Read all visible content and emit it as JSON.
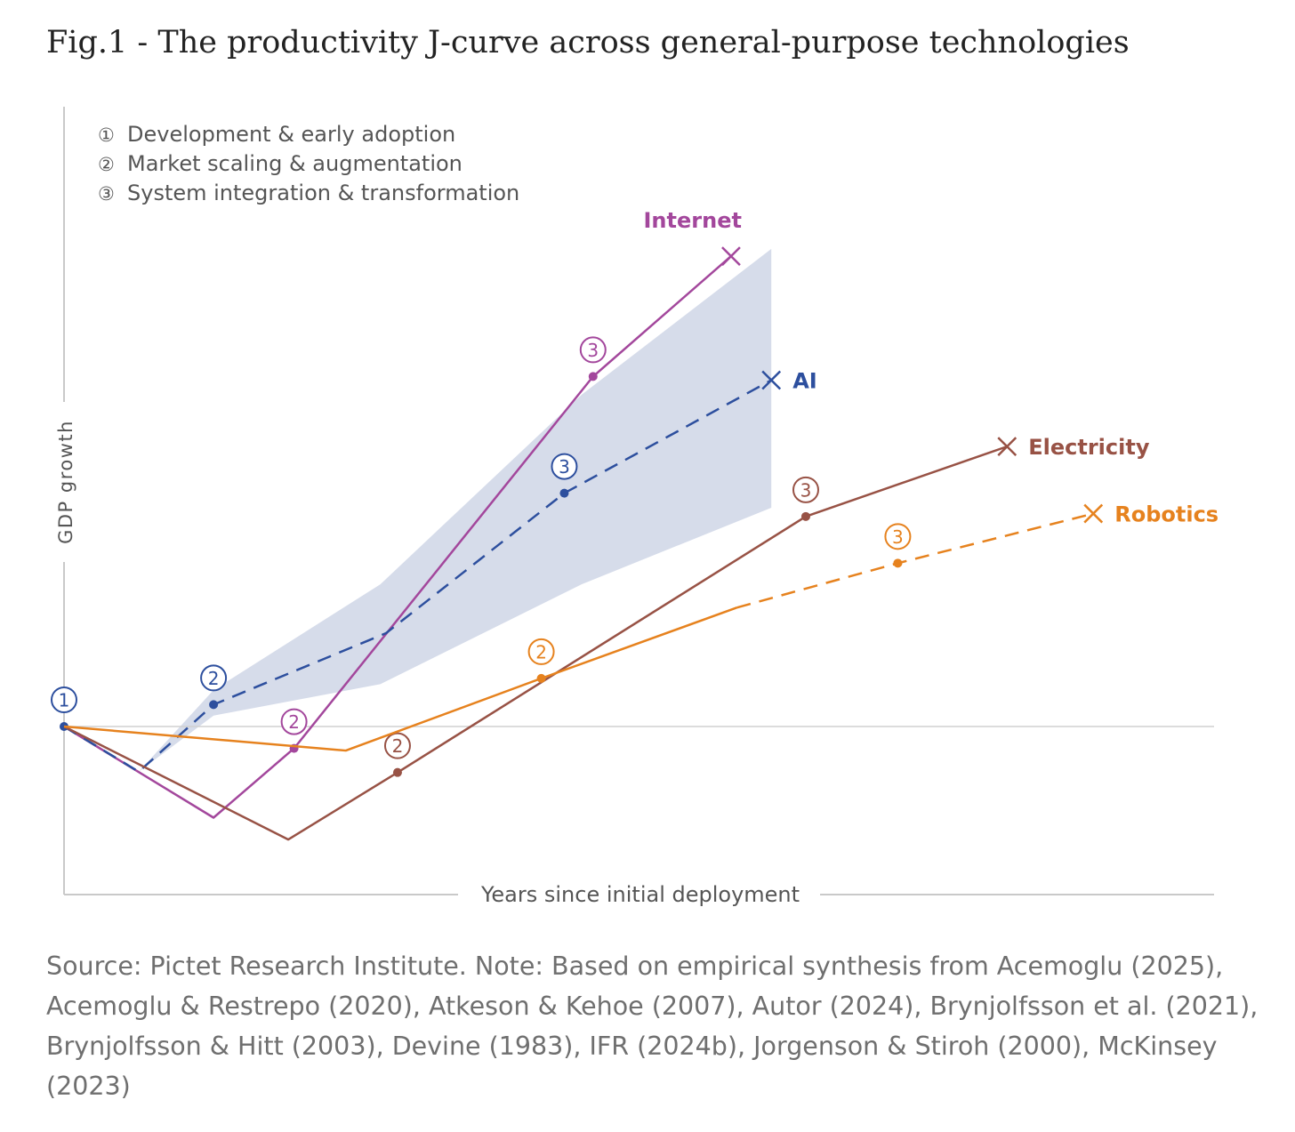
{
  "title": "Fig.1 - The productivity J-curve across general-purpose technologies",
  "source": "Source: Pictet Research Institute. Note: Based on empirical synthesis from Acemoglu (2025), Acemoglu & Restrepo (2020), Atkeson & Kehoe (2007), Autor (2024), Brynjolfsson et al. (2021), Brynjolfsson & Hitt (2003), Devine (1983), IFR (2024b), Jorgenson & Stiroh (2000), McKinsey (2023)",
  "chart_data": {
    "type": "line",
    "xlabel": "Years since initial deployment",
    "ylabel": "GDP growth",
    "grid": false,
    "baseline": 0,
    "xlim": [
      0,
      100
    ],
    "ylim": [
      -16,
      72
    ],
    "phases": [
      {
        "marker": "①",
        "label": "Development & early adoption"
      },
      {
        "marker": "②",
        "label": "Market scaling & augmentation"
      },
      {
        "marker": "③",
        "label": "System integration & transformation"
      }
    ],
    "legend_placement": "top-left",
    "series": [
      {
        "name": "Internet",
        "color": "#a3479c",
        "style": "solid",
        "end_marker": "X",
        "points": [
          [
            0,
            0
          ],
          [
            13,
            -12.5
          ],
          [
            20,
            -3
          ],
          [
            46,
            48
          ],
          [
            58,
            64.5
          ]
        ],
        "phase_points": [
          {
            "phase": "①",
            "index": 0
          },
          {
            "phase": "②",
            "index": 2
          },
          {
            "phase": "③",
            "index": 3
          }
        ]
      },
      {
        "name": "AI",
        "color": "#2d4f9e",
        "style": "dashed",
        "end_marker": "X",
        "points": [
          [
            0,
            0
          ],
          [
            6.5,
            -6.2
          ],
          [
            13,
            3
          ],
          [
            28,
            12.8
          ],
          [
            43.5,
            32
          ],
          [
            61.5,
            47.5
          ]
        ],
        "phase_points": [
          {
            "phase": "②",
            "index": 2
          },
          {
            "phase": "③",
            "index": 4
          }
        ],
        "band": {
          "color": "#d6dcea",
          "upper": [
            [
              6.5,
              -6.2
            ],
            [
              13,
              5
            ],
            [
              27.5,
              19.5
            ],
            [
              45,
              45.5
            ],
            [
              61.5,
              65.5
            ]
          ],
          "lower": [
            [
              6.5,
              -6.2
            ],
            [
              13,
              1.5
            ],
            [
              27.5,
              5.8
            ],
            [
              45,
              19.5
            ],
            [
              61.5,
              30
            ]
          ]
        }
      },
      {
        "name": "Electricity",
        "color": "#985245",
        "style": "solid",
        "end_marker": "X",
        "points": [
          [
            0,
            0
          ],
          [
            19.5,
            -15.5
          ],
          [
            29,
            -6.3
          ],
          [
            64.5,
            28.8
          ],
          [
            82,
            38.4
          ]
        ],
        "phase_points": [
          {
            "phase": "②",
            "index": 2
          },
          {
            "phase": "③",
            "index": 3
          }
        ]
      },
      {
        "name": "Robotics",
        "color": "#e6821e",
        "style": "solid-then-dashed",
        "dash_from": 58.5,
        "end_marker": "X",
        "points": [
          [
            0,
            0
          ],
          [
            24.5,
            -3.3
          ],
          [
            41.5,
            6.6
          ],
          [
            58.5,
            16.3
          ],
          [
            72.5,
            22.4
          ],
          [
            89.5,
            29.2
          ]
        ],
        "phase_points": [
          {
            "phase": "②",
            "index": 2
          },
          {
            "phase": "③",
            "index": 4
          }
        ]
      }
    ]
  }
}
